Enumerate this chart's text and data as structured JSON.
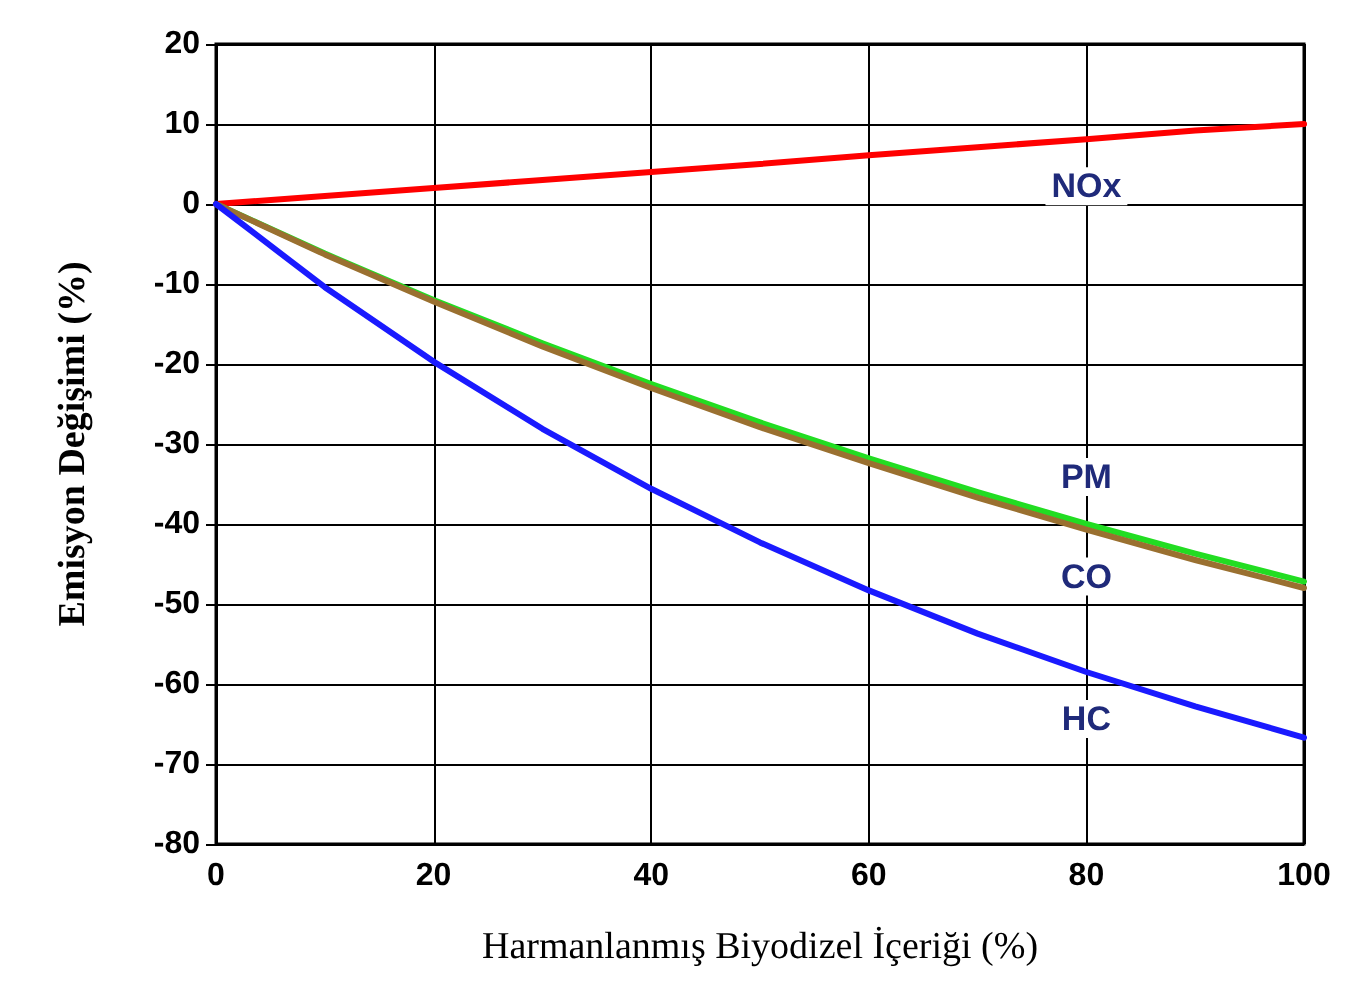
{
  "chart_data": {
    "type": "line",
    "xlabel": "Harmanlanmış Biyodizel İçeriği (%)",
    "ylabel": "Emisyon Değişimi (%)",
    "x": [
      0,
      10,
      20,
      30,
      40,
      50,
      60,
      70,
      80,
      90,
      100
    ],
    "series": [
      {
        "name": "NOx",
        "color": "#ff0000",
        "values": [
          0,
          1,
          2,
          3,
          4,
          5,
          6.1,
          7.1,
          8.1,
          9.2,
          10
        ]
      },
      {
        "name": "PM",
        "color": "#22dd22",
        "values": [
          0,
          -6.2,
          -12,
          -17.4,
          -22.5,
          -27.3,
          -31.8,
          -36,
          -40,
          -43.7,
          -47.2
        ]
      },
      {
        "name": "CO",
        "color": "#9a7030",
        "values": [
          0,
          -6.3,
          -12.2,
          -17.8,
          -23,
          -27.9,
          -32.4,
          -36.7,
          -40.7,
          -44.5,
          -48
        ]
      },
      {
        "name": "HC",
        "color": "#1a1aff",
        "values": [
          0,
          -10.4,
          -19.7,
          -28.1,
          -35.6,
          -42.3,
          -48.3,
          -53.7,
          -58.5,
          -62.8,
          -66.7
        ]
      }
    ],
    "xlim": [
      0,
      100
    ],
    "xticks": [
      0,
      20,
      40,
      60,
      80,
      100
    ],
    "ylim": [
      -80,
      20
    ],
    "yticks": [
      -80,
      -70,
      -60,
      -50,
      -40,
      -30,
      -20,
      -10,
      0,
      10,
      20
    ],
    "grid": true,
    "legend": false,
    "marker": "none",
    "line_style": "solid"
  }
}
